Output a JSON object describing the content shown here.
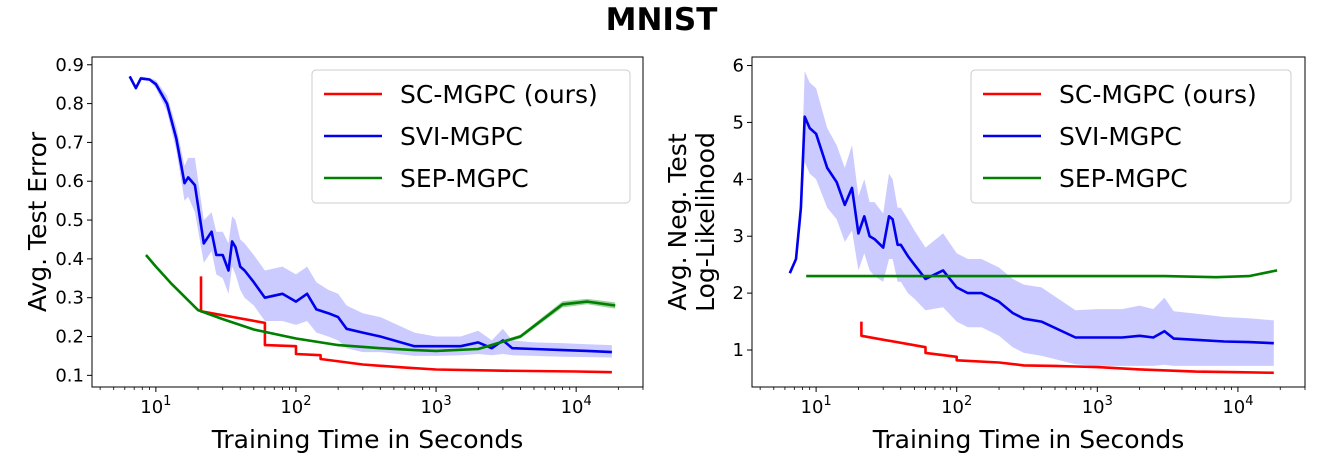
{
  "title": "MNIST",
  "chart_data": [
    {
      "type": "line",
      "xlabel": "Training Time in Seconds",
      "ylabel": "Avg. Test Error",
      "xscale": "log",
      "xlim": [
        3.5,
        30000
      ],
      "ylim": [
        0.07,
        0.92
      ],
      "xticks": [
        {
          "value": 10,
          "base": "10",
          "exp": "1"
        },
        {
          "value": 100,
          "base": "10",
          "exp": "2"
        },
        {
          "value": 1000,
          "base": "10",
          "exp": "3"
        },
        {
          "value": 10000,
          "base": "10",
          "exp": "4"
        }
      ],
      "yticks": [
        {
          "value": 0.1,
          "label": "0.1"
        },
        {
          "value": 0.2,
          "label": "0.2"
        },
        {
          "value": 0.3,
          "label": "0.3"
        },
        {
          "value": 0.4,
          "label": "0.4"
        },
        {
          "value": 0.5,
          "label": "0.5"
        },
        {
          "value": 0.6,
          "label": "0.6"
        },
        {
          "value": 0.7,
          "label": "0.7"
        },
        {
          "value": 0.8,
          "label": "0.8"
        },
        {
          "value": 0.9,
          "label": "0.9"
        }
      ],
      "legend_position": "top-right",
      "series": [
        {
          "name": "SC-MGPC (ours)",
          "color": "#ff0000",
          "band_color": "#ff9999",
          "x": [
            21,
            21,
            60,
            60,
            100,
            100,
            150,
            150,
            300,
            600,
            1000,
            3000,
            10000,
            18000
          ],
          "y": [
            0.355,
            0.265,
            0.235,
            0.178,
            0.175,
            0.155,
            0.152,
            0.142,
            0.128,
            0.12,
            0.115,
            0.112,
            0.11,
            0.108
          ],
          "lower": [
            0.355,
            0.265,
            0.235,
            0.178,
            0.175,
            0.155,
            0.152,
            0.142,
            0.128,
            0.12,
            0.115,
            0.112,
            0.11,
            0.108
          ],
          "upper": [
            0.355,
            0.265,
            0.235,
            0.178,
            0.175,
            0.155,
            0.152,
            0.142,
            0.128,
            0.12,
            0.115,
            0.112,
            0.11,
            0.108
          ]
        },
        {
          "name": "SVI-MGPC",
          "color": "#0000ee",
          "band_color": "#c8c8ff",
          "x": [
            6.5,
            7.2,
            7.8,
            9,
            10,
            12,
            14,
            16,
            17,
            19,
            22,
            25,
            27,
            30,
            33,
            35,
            37,
            40,
            43,
            50,
            60,
            80,
            100,
            120,
            140,
            170,
            200,
            230,
            300,
            400,
            700,
            1000,
            1500,
            2000,
            2500,
            3000,
            3500,
            5000,
            8000,
            12000,
            18000
          ],
          "y": [
            0.87,
            0.84,
            0.865,
            0.862,
            0.85,
            0.8,
            0.71,
            0.595,
            0.61,
            0.59,
            0.44,
            0.47,
            0.41,
            0.41,
            0.37,
            0.445,
            0.43,
            0.38,
            0.37,
            0.34,
            0.3,
            0.31,
            0.29,
            0.31,
            0.27,
            0.26,
            0.25,
            0.22,
            0.21,
            0.2,
            0.175,
            0.175,
            0.175,
            0.185,
            0.17,
            0.19,
            0.17,
            0.168,
            0.165,
            0.163,
            0.16
          ],
          "lower": [
            0.87,
            0.84,
            0.86,
            0.858,
            0.84,
            0.78,
            0.68,
            0.55,
            0.56,
            0.52,
            0.39,
            0.42,
            0.36,
            0.35,
            0.31,
            0.38,
            0.36,
            0.32,
            0.3,
            0.28,
            0.24,
            0.24,
            0.23,
            0.24,
            0.21,
            0.2,
            0.19,
            0.17,
            0.16,
            0.16,
            0.15,
            0.15,
            0.152,
            0.155,
            0.152,
            0.155,
            0.152,
            0.15,
            0.148,
            0.147,
            0.146
          ],
          "upper": [
            0.87,
            0.84,
            0.87,
            0.866,
            0.86,
            0.82,
            0.74,
            0.64,
            0.66,
            0.66,
            0.5,
            0.52,
            0.47,
            0.47,
            0.44,
            0.51,
            0.5,
            0.45,
            0.44,
            0.41,
            0.37,
            0.38,
            0.36,
            0.38,
            0.34,
            0.32,
            0.31,
            0.28,
            0.26,
            0.25,
            0.21,
            0.2,
            0.2,
            0.215,
            0.19,
            0.22,
            0.19,
            0.185,
            0.183,
            0.18,
            0.178
          ]
        },
        {
          "name": "SEP-MGPC",
          "color": "#008000",
          "band_color": "#99cc99",
          "x": [
            8.5,
            10,
            13,
            20,
            30,
            50,
            100,
            200,
            400,
            700,
            1000,
            2000,
            4000,
            8000,
            12000,
            19000
          ],
          "y": [
            0.41,
            0.38,
            0.335,
            0.268,
            0.245,
            0.218,
            0.195,
            0.178,
            0.17,
            0.165,
            0.163,
            0.168,
            0.2,
            0.283,
            0.29,
            0.28
          ],
          "lower": [
            0.408,
            0.378,
            0.333,
            0.265,
            0.242,
            0.215,
            0.192,
            0.175,
            0.167,
            0.162,
            0.16,
            0.165,
            0.195,
            0.275,
            0.283,
            0.272
          ],
          "upper": [
            0.412,
            0.382,
            0.337,
            0.271,
            0.248,
            0.221,
            0.198,
            0.181,
            0.173,
            0.168,
            0.166,
            0.171,
            0.205,
            0.291,
            0.297,
            0.288
          ]
        }
      ]
    },
    {
      "type": "line",
      "xlabel": "Training Time in Seconds",
      "ylabel": [
        "Avg. Neg. Test",
        "Log-Likelihood"
      ],
      "xscale": "log",
      "xlim": [
        3.5,
        30000
      ],
      "ylim": [
        0.35,
        6.15
      ],
      "xticks": [
        {
          "value": 10,
          "base": "10",
          "exp": "1"
        },
        {
          "value": 100,
          "base": "10",
          "exp": "2"
        },
        {
          "value": 1000,
          "base": "10",
          "exp": "3"
        },
        {
          "value": 10000,
          "base": "10",
          "exp": "4"
        }
      ],
      "yticks": [
        {
          "value": 1,
          "label": "1"
        },
        {
          "value": 2,
          "label": "2"
        },
        {
          "value": 3,
          "label": "3"
        },
        {
          "value": 4,
          "label": "4"
        },
        {
          "value": 5,
          "label": "5"
        },
        {
          "value": 6,
          "label": "6"
        }
      ],
      "legend_position": "top-right",
      "series": [
        {
          "name": "SC-MGPC (ours)",
          "color": "#ff0000",
          "band_color": "#ff9999",
          "x": [
            21,
            21,
            60,
            60,
            100,
            100,
            200,
            300,
            500,
            700,
            1000,
            2000,
            5000,
            10000,
            18000
          ],
          "y": [
            1.5,
            1.25,
            1.05,
            0.95,
            0.88,
            0.82,
            0.78,
            0.73,
            0.72,
            0.71,
            0.7,
            0.66,
            0.62,
            0.61,
            0.6
          ],
          "lower": [
            1.5,
            1.25,
            1.05,
            0.95,
            0.88,
            0.82,
            0.78,
            0.73,
            0.72,
            0.71,
            0.7,
            0.66,
            0.62,
            0.61,
            0.6
          ],
          "upper": [
            1.5,
            1.25,
            1.05,
            0.95,
            0.88,
            0.82,
            0.78,
            0.73,
            0.72,
            0.71,
            0.7,
            0.66,
            0.62,
            0.61,
            0.6
          ]
        },
        {
          "name": "SVI-MGPC",
          "color": "#0000ee",
          "band_color": "#c8c8ff",
          "x": [
            6.5,
            7.2,
            7.8,
            8.3,
            9,
            10,
            12,
            14,
            16,
            18,
            20,
            22,
            24,
            26,
            30,
            33,
            35,
            38,
            40,
            45,
            50,
            60,
            80,
            100,
            120,
            150,
            200,
            250,
            300,
            400,
            700,
            1000,
            1500,
            2000,
            2500,
            3000,
            3500,
            5000,
            8000,
            12000,
            18000
          ],
          "y": [
            2.35,
            2.6,
            3.5,
            5.1,
            4.9,
            4.8,
            4.2,
            3.95,
            3.55,
            3.85,
            3.05,
            3.35,
            3.0,
            2.95,
            2.8,
            3.35,
            3.3,
            2.85,
            2.85,
            2.65,
            2.5,
            2.25,
            2.4,
            2.1,
            2.0,
            2.0,
            1.85,
            1.65,
            1.55,
            1.5,
            1.22,
            1.22,
            1.22,
            1.25,
            1.22,
            1.33,
            1.2,
            1.18,
            1.15,
            1.14,
            1.12
          ],
          "lower": [
            2.35,
            2.6,
            3.2,
            4.3,
            4.1,
            4.0,
            3.5,
            3.3,
            2.9,
            3.1,
            2.4,
            2.7,
            2.4,
            2.3,
            2.2,
            2.6,
            2.6,
            2.2,
            2.2,
            2.0,
            1.9,
            1.7,
            1.75,
            1.5,
            1.4,
            1.4,
            1.25,
            1.05,
            0.95,
            0.9,
            0.75,
            0.72,
            0.72,
            0.72,
            0.72,
            0.74,
            0.72,
            0.72,
            0.72,
            0.72,
            0.72
          ],
          "upper": [
            2.35,
            2.6,
            3.8,
            5.9,
            5.7,
            5.6,
            4.9,
            4.6,
            4.2,
            4.6,
            3.7,
            4.0,
            3.6,
            3.6,
            3.4,
            4.1,
            4.0,
            3.5,
            3.5,
            3.3,
            3.1,
            2.8,
            3.05,
            2.7,
            2.6,
            2.6,
            2.45,
            2.25,
            2.15,
            2.1,
            1.7,
            1.72,
            1.72,
            1.78,
            1.72,
            1.92,
            1.68,
            1.64,
            1.58,
            1.56,
            1.52
          ]
        },
        {
          "name": "SEP-MGPC",
          "color": "#008000",
          "band_color": "#99cc99",
          "x": [
            8.5,
            20,
            50,
            100,
            300,
            1000,
            3000,
            7000,
            12000,
            19000
          ],
          "y": [
            2.3,
            2.3,
            2.3,
            2.3,
            2.3,
            2.3,
            2.3,
            2.28,
            2.3,
            2.4
          ],
          "lower": [
            2.29,
            2.29,
            2.29,
            2.29,
            2.29,
            2.29,
            2.29,
            2.27,
            2.29,
            2.38
          ],
          "upper": [
            2.31,
            2.31,
            2.31,
            2.31,
            2.31,
            2.31,
            2.31,
            2.29,
            2.31,
            2.42
          ]
        }
      ]
    }
  ]
}
